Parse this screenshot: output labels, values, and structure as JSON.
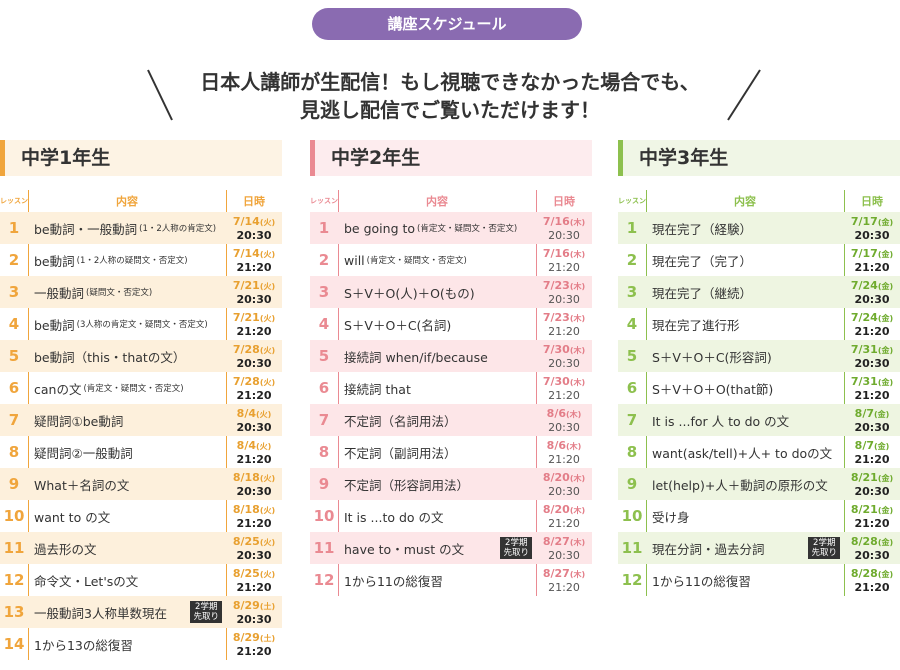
{
  "badge": "講座スケジュール",
  "headline": [
    "日本人講師が生配信！もし視聴できなかった場合でも、",
    "見逃し配信でご覧いただけます！"
  ],
  "columns": [
    {
      "title": "中学1年生",
      "headers": [
        "レッスン",
        "内容",
        "日時"
      ],
      "rows": [
        {
          "num": 1,
          "text": "be動詞・一般動詞",
          "note": "(1・2人称の肯定文)",
          "date": "7/14",
          "day": "(火)",
          "time": "20:30"
        },
        {
          "num": 2,
          "text": "be動詞",
          "note": "(1・2人称の疑問文・否定文)",
          "date": "7/14",
          "day": "(火)",
          "time": "21:20"
        },
        {
          "num": 3,
          "text": "一般動詞",
          "note": "(疑問文・否定文)",
          "date": "7/21",
          "day": "(火)",
          "time": "20:30"
        },
        {
          "num": 4,
          "text": "be動詞",
          "note": "(3人称の肯定文・疑問文・否定文)",
          "date": "7/21",
          "day": "(火)",
          "time": "21:20"
        },
        {
          "num": 5,
          "text": "be動詞（this・thatの文）",
          "date": "7/28",
          "day": "(火)",
          "time": "20:30"
        },
        {
          "num": 6,
          "text": "canの文",
          "note": "(肯定文・疑問文・否定文)",
          "date": "7/28",
          "day": "(火)",
          "time": "21:20"
        },
        {
          "num": 7,
          "text": "疑問詞①be動詞",
          "date": "8/4",
          "day": "(火)",
          "time": "20:30"
        },
        {
          "num": 8,
          "text": "疑問詞②一般動詞",
          "date": "8/4",
          "day": "(火)",
          "time": "21:20"
        },
        {
          "num": 9,
          "text": "What＋名詞の文",
          "date": "8/18",
          "day": "(火)",
          "time": "20:30"
        },
        {
          "num": 10,
          "text": "want to の文",
          "date": "8/18",
          "day": "(火)",
          "time": "21:20"
        },
        {
          "num": 11,
          "text": "過去形の文",
          "date": "8/25",
          "day": "(火)",
          "time": "20:30"
        },
        {
          "num": 12,
          "text": "命令文・Let'sの文",
          "date": "8/25",
          "day": "(火)",
          "time": "21:20"
        },
        {
          "num": 13,
          "text": "一般動詞3人称単数現在",
          "tag": [
            "2学期",
            "先取り"
          ],
          "date": "8/29",
          "day": "(土)",
          "time": "20:30"
        },
        {
          "num": 14,
          "text": "1から13の総復習",
          "date": "8/29",
          "day": "(土)",
          "time": "21:20"
        }
      ]
    },
    {
      "title": "中学2年生",
      "headers": [
        "レッスン",
        "内容",
        "日時"
      ],
      "rows": [
        {
          "num": 1,
          "text": "be going to",
          "note": "(肯定文・疑問文・否定文)",
          "date": "7/16",
          "day": "(木)",
          "time": "20:30"
        },
        {
          "num": 2,
          "text": "will",
          "note": "(肯定文・疑問文・否定文)",
          "date": "7/16",
          "day": "(木)",
          "time": "21:20"
        },
        {
          "num": 3,
          "text": "S＋V＋O(人)＋O(もの)",
          "date": "7/23",
          "day": "(木)",
          "time": "20:30"
        },
        {
          "num": 4,
          "text": "S＋V＋O＋C(名詞)",
          "date": "7/23",
          "day": "(木)",
          "time": "21:20"
        },
        {
          "num": 5,
          "text": "接続詞 when/if/because",
          "date": "7/30",
          "day": "(木)",
          "time": "20:30"
        },
        {
          "num": 6,
          "text": "接続詞 that",
          "date": "7/30",
          "day": "(木)",
          "time": "21:20"
        },
        {
          "num": 7,
          "text": "不定詞（名詞用法）",
          "date": "8/6",
          "day": "(木)",
          "time": "20:30"
        },
        {
          "num": 8,
          "text": "不定詞（副詞用法）",
          "date": "8/6",
          "day": "(木)",
          "time": "21:20"
        },
        {
          "num": 9,
          "text": "不定詞（形容詞用法）",
          "date": "8/20",
          "day": "(木)",
          "time": "20:30"
        },
        {
          "num": 10,
          "text": "It is ...to do の文",
          "date": "8/20",
          "day": "(木)",
          "time": "21:20"
        },
        {
          "num": 11,
          "text": "have to・must の文",
          "tag": [
            "2学期",
            "先取り"
          ],
          "date": "8/27",
          "day": "(木)",
          "time": "20:30"
        },
        {
          "num": 12,
          "text": "1から11の総復習",
          "date": "8/27",
          "day": "(木)",
          "time": "21:20"
        }
      ]
    },
    {
      "title": "中学3年生",
      "headers": [
        "レッスン",
        "内容",
        "日時"
      ],
      "rows": [
        {
          "num": 1,
          "text": "現在完了（経験）",
          "date": "7/17",
          "day": "(金)",
          "time": "20:30"
        },
        {
          "num": 2,
          "text": "現在完了（完了）",
          "date": "7/17",
          "day": "(金)",
          "time": "21:20"
        },
        {
          "num": 3,
          "text": "現在完了（継続）",
          "date": "7/24",
          "day": "(金)",
          "time": "20:30"
        },
        {
          "num": 4,
          "text": "現在完了進行形",
          "date": "7/24",
          "day": "(金)",
          "time": "21:20"
        },
        {
          "num": 5,
          "text": "S＋V＋O＋C(形容詞)",
          "date": "7/31",
          "day": "(金)",
          "time": "20:30"
        },
        {
          "num": 6,
          "text": "S＋V＋O＋O(that節)",
          "date": "7/31",
          "day": "(金)",
          "time": "21:20"
        },
        {
          "num": 7,
          "text": "It is ...for 人 to do の文",
          "date": "8/7",
          "day": "(金)",
          "time": "20:30"
        },
        {
          "num": 8,
          "text": "want(ask/tell)+人+ to doの文",
          "date": "8/7",
          "day": "(金)",
          "time": "21:20"
        },
        {
          "num": 9,
          "text": "let(help)+人＋動詞の原形の文",
          "date": "8/21",
          "day": "(金)",
          "time": "20:30"
        },
        {
          "num": 10,
          "text": "受け身",
          "date": "8/21",
          "day": "(金)",
          "time": "21:20"
        },
        {
          "num": 11,
          "text": "現在分詞・過去分詞",
          "tag": [
            "2学期",
            "先取り"
          ],
          "date": "8/28",
          "day": "(金)",
          "time": "20:30"
        },
        {
          "num": 12,
          "text": "1から11の総復習",
          "date": "8/28",
          "day": "(金)",
          "time": "21:20"
        }
      ]
    }
  ]
}
